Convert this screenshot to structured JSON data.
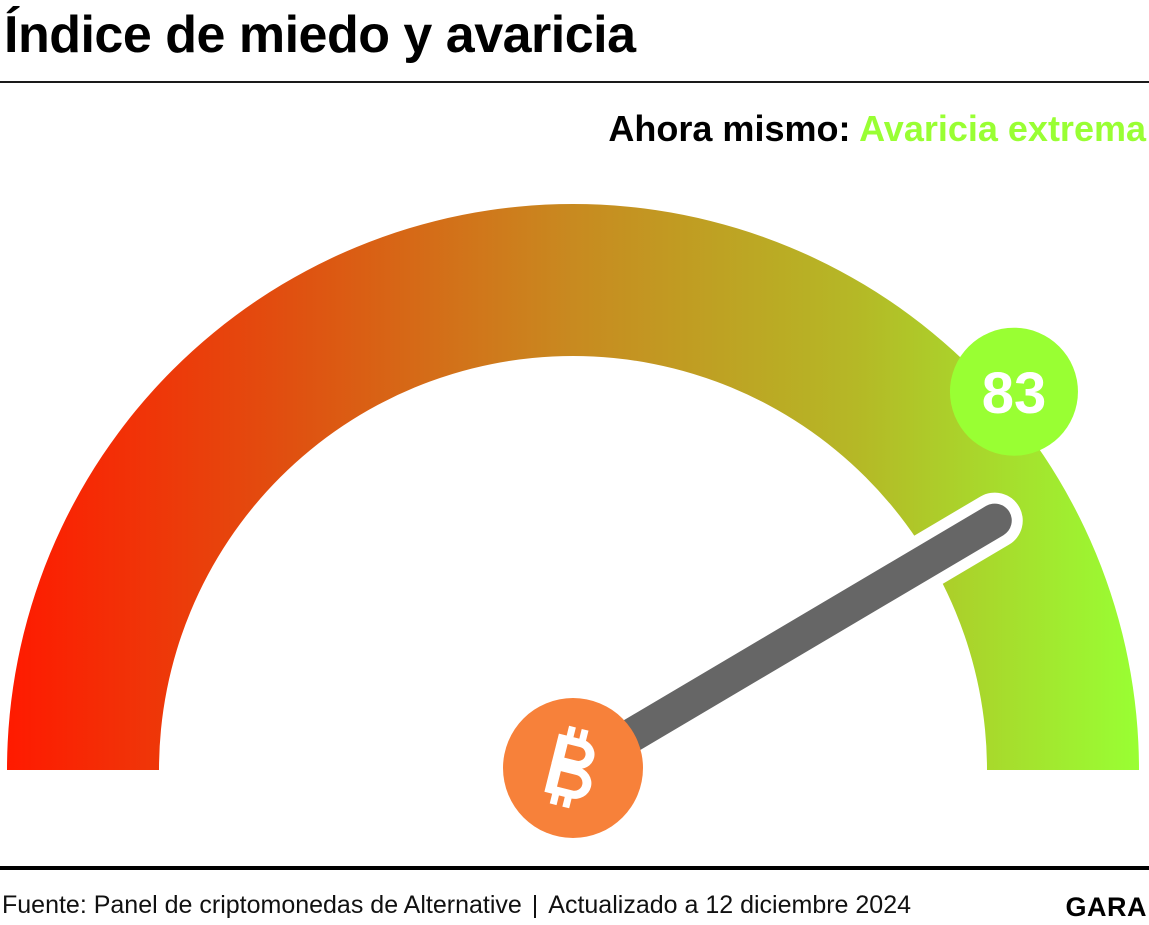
{
  "title": "Índice de miedo y avaricia",
  "status": {
    "label": "Ahora mismo:",
    "value": "Avaricia extrema",
    "color": "#99ff33"
  },
  "chart_data": {
    "type": "gauge",
    "value": 83,
    "min": 0,
    "max": 100,
    "value_label": "83",
    "gradient_colors": [
      "#ff1a00",
      "#e05010",
      "#c88a20",
      "#b5b826",
      "#99ff33"
    ],
    "needle_color": "#666666",
    "value_badge_color": "#99ff33",
    "hub_icon": "bitcoin-icon",
    "hub_color": "#f7813a"
  },
  "footer": {
    "source": "Fuente: Panel de criptomonedas de Alternative",
    "separator": "|",
    "updated": "Actualizado a 12 diciembre 2024",
    "brand": "GARA"
  }
}
